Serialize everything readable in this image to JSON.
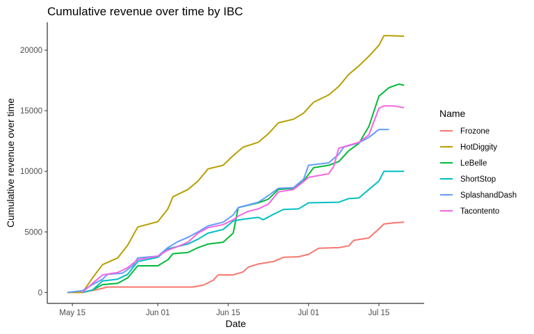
{
  "chart_data": {
    "type": "line",
    "title": "Cumulative revenue over time by IBC",
    "xlabel": "Date",
    "ylabel": "Cumulative revenue over time",
    "legend_title": "Name",
    "legend_position": "right",
    "grid": false,
    "xlim": [
      "2021-05-10",
      "2021-07-24"
    ],
    "ylim": [
      -900,
      22300
    ],
    "x_ticks": [
      {
        "date": "2021-05-15",
        "label": "May 15"
      },
      {
        "date": "2021-06-01",
        "label": "Jun 01"
      },
      {
        "date": "2021-06-15",
        "label": "Jun 15"
      },
      {
        "date": "2021-07-01",
        "label": "Jul 01"
      },
      {
        "date": "2021-07-15",
        "label": "Jul 15"
      }
    ],
    "y_ticks": [
      {
        "value": 0,
        "label": "0"
      },
      {
        "value": 5000,
        "label": "5000"
      },
      {
        "value": 10000,
        "label": "10000"
      },
      {
        "value": 15000,
        "label": "15000"
      },
      {
        "value": 20000,
        "label": "20000"
      }
    ],
    "series": [
      {
        "name": "Frozone",
        "color": "#F8766D",
        "points": [
          [
            "2021-05-14",
            0
          ],
          [
            "2021-05-17",
            0
          ],
          [
            "2021-05-20",
            250
          ],
          [
            "2021-05-22",
            450
          ],
          [
            "2021-05-30",
            450
          ],
          [
            "2021-06-05",
            450
          ],
          [
            "2021-06-08",
            450
          ],
          [
            "2021-06-10",
            600
          ],
          [
            "2021-06-12",
            1000
          ],
          [
            "2021-06-13",
            1450
          ],
          [
            "2021-06-16",
            1450
          ],
          [
            "2021-06-18",
            1700
          ],
          [
            "2021-06-19",
            2100
          ],
          [
            "2021-06-21",
            2350
          ],
          [
            "2021-06-24",
            2550
          ],
          [
            "2021-06-26",
            2900
          ],
          [
            "2021-06-29",
            2950
          ],
          [
            "2021-07-01",
            3150
          ],
          [
            "2021-07-03",
            3650
          ],
          [
            "2021-07-07",
            3700
          ],
          [
            "2021-07-09",
            3850
          ],
          [
            "2021-07-10",
            4300
          ],
          [
            "2021-07-13",
            4500
          ],
          [
            "2021-07-15",
            5250
          ],
          [
            "2021-07-16",
            5650
          ],
          [
            "2021-07-18",
            5750
          ],
          [
            "2021-07-20",
            5800
          ]
        ]
      },
      {
        "name": "HotDiggity",
        "color": "#B79F00",
        "points": [
          [
            "2021-05-14",
            0
          ],
          [
            "2021-05-17",
            0
          ],
          [
            "2021-05-19",
            1200
          ],
          [
            "2021-05-21",
            2300
          ],
          [
            "2021-05-24",
            2850
          ],
          [
            "2021-05-26",
            3900
          ],
          [
            "2021-05-28",
            5400
          ],
          [
            "2021-06-01",
            5850
          ],
          [
            "2021-06-03",
            6900
          ],
          [
            "2021-06-04",
            7900
          ],
          [
            "2021-06-07",
            8500
          ],
          [
            "2021-06-09",
            9200
          ],
          [
            "2021-06-11",
            10200
          ],
          [
            "2021-06-14",
            10500
          ],
          [
            "2021-06-16",
            11300
          ],
          [
            "2021-06-18",
            12000
          ],
          [
            "2021-06-21",
            12400
          ],
          [
            "2021-06-23",
            13100
          ],
          [
            "2021-06-25",
            14000
          ],
          [
            "2021-06-28",
            14300
          ],
          [
            "2021-06-30",
            14800
          ],
          [
            "2021-07-02",
            15700
          ],
          [
            "2021-07-05",
            16300
          ],
          [
            "2021-07-07",
            17000
          ],
          [
            "2021-07-09",
            18000
          ],
          [
            "2021-07-11",
            18700
          ],
          [
            "2021-07-13",
            19500
          ],
          [
            "2021-07-15",
            20400
          ],
          [
            "2021-07-16",
            21200
          ],
          [
            "2021-07-17",
            21200
          ],
          [
            "2021-07-20",
            21150
          ]
        ]
      },
      {
        "name": "LeBelle",
        "color": "#00BA38",
        "points": [
          [
            "2021-05-17",
            0
          ],
          [
            "2021-05-19",
            200
          ],
          [
            "2021-05-21",
            650
          ],
          [
            "2021-05-24",
            750
          ],
          [
            "2021-05-26",
            1200
          ],
          [
            "2021-05-28",
            2200
          ],
          [
            "2021-06-01",
            2200
          ],
          [
            "2021-06-03",
            2700
          ],
          [
            "2021-06-04",
            3200
          ],
          [
            "2021-06-07",
            3300
          ],
          [
            "2021-06-09",
            3700
          ],
          [
            "2021-06-11",
            4000
          ],
          [
            "2021-06-14",
            4150
          ],
          [
            "2021-06-16",
            4900
          ],
          [
            "2021-06-17",
            7000
          ],
          [
            "2021-06-21",
            7400
          ],
          [
            "2021-06-23",
            7700
          ],
          [
            "2021-06-25",
            8500
          ],
          [
            "2021-06-28",
            8600
          ],
          [
            "2021-06-30",
            9200
          ],
          [
            "2021-07-02",
            10300
          ],
          [
            "2021-07-05",
            10500
          ],
          [
            "2021-07-07",
            10800
          ],
          [
            "2021-07-09",
            11700
          ],
          [
            "2021-07-11",
            12300
          ],
          [
            "2021-07-13",
            13700
          ],
          [
            "2021-07-15",
            16200
          ],
          [
            "2021-07-17",
            16900
          ],
          [
            "2021-07-19",
            17200
          ],
          [
            "2021-07-20",
            17100
          ]
        ]
      },
      {
        "name": "ShortStop",
        "color": "#00BFC4",
        "points": [
          [
            "2021-05-17",
            0
          ],
          [
            "2021-05-19",
            200
          ],
          [
            "2021-05-21",
            950
          ],
          [
            "2021-05-24",
            1100
          ],
          [
            "2021-05-26",
            1500
          ],
          [
            "2021-05-28",
            2550
          ],
          [
            "2021-06-01",
            2900
          ],
          [
            "2021-06-03",
            3600
          ],
          [
            "2021-06-07",
            4000
          ],
          [
            "2021-06-09",
            4400
          ],
          [
            "2021-06-11",
            4900
          ],
          [
            "2021-06-14",
            5200
          ],
          [
            "2021-06-16",
            5900
          ],
          [
            "2021-06-18",
            6050
          ],
          [
            "2021-06-21",
            6200
          ],
          [
            "2021-06-22",
            6000
          ],
          [
            "2021-06-24",
            6450
          ],
          [
            "2021-06-26",
            6850
          ],
          [
            "2021-06-29",
            6900
          ],
          [
            "2021-07-01",
            7400
          ],
          [
            "2021-07-07",
            7450
          ],
          [
            "2021-07-09",
            7750
          ],
          [
            "2021-07-11",
            7800
          ],
          [
            "2021-07-13",
            8500
          ],
          [
            "2021-07-15",
            9200
          ],
          [
            "2021-07-16",
            10000
          ],
          [
            "2021-07-20",
            10000
          ]
        ]
      },
      {
        "name": "SplashandDash",
        "color": "#619CFF",
        "points": [
          [
            "2021-05-14",
            0
          ],
          [
            "2021-05-17",
            150
          ],
          [
            "2021-05-19",
            650
          ],
          [
            "2021-05-21",
            1100
          ],
          [
            "2021-05-22",
            1500
          ],
          [
            "2021-05-25",
            1600
          ],
          [
            "2021-05-27",
            2200
          ],
          [
            "2021-05-28",
            2850
          ],
          [
            "2021-06-01",
            3000
          ],
          [
            "2021-06-03",
            3700
          ],
          [
            "2021-06-05",
            4200
          ],
          [
            "2021-06-07",
            4550
          ],
          [
            "2021-06-09",
            5000
          ],
          [
            "2021-06-11",
            5500
          ],
          [
            "2021-06-14",
            5800
          ],
          [
            "2021-06-16",
            6400
          ],
          [
            "2021-06-17",
            7000
          ],
          [
            "2021-06-21",
            7450
          ],
          [
            "2021-06-23",
            8000
          ],
          [
            "2021-06-25",
            8600
          ],
          [
            "2021-06-28",
            8650
          ],
          [
            "2021-06-30",
            9350
          ],
          [
            "2021-07-01",
            10500
          ],
          [
            "2021-07-05",
            10700
          ],
          [
            "2021-07-07",
            11400
          ],
          [
            "2021-07-08",
            12000
          ],
          [
            "2021-07-11",
            12350
          ],
          [
            "2021-07-13",
            12800
          ],
          [
            "2021-07-15",
            13450
          ],
          [
            "2021-07-17",
            13450
          ]
        ]
      },
      {
        "name": "Tacontento",
        "color": "#F564E3",
        "points": [
          [
            "2021-05-17",
            0
          ],
          [
            "2021-05-19",
            750
          ],
          [
            "2021-05-21",
            1450
          ],
          [
            "2021-05-24",
            1650
          ],
          [
            "2021-05-26",
            2050
          ],
          [
            "2021-05-28",
            2700
          ],
          [
            "2021-06-01",
            3000
          ],
          [
            "2021-06-03",
            3500
          ],
          [
            "2021-06-05",
            3800
          ],
          [
            "2021-06-07",
            4150
          ],
          [
            "2021-06-09",
            4900
          ],
          [
            "2021-06-11",
            5350
          ],
          [
            "2021-06-14",
            5600
          ],
          [
            "2021-06-16",
            6000
          ],
          [
            "2021-06-17",
            6300
          ],
          [
            "2021-06-19",
            6700
          ],
          [
            "2021-06-21",
            6900
          ],
          [
            "2021-06-23",
            7300
          ],
          [
            "2021-06-25",
            8300
          ],
          [
            "2021-06-28",
            8500
          ],
          [
            "2021-06-30",
            9150
          ],
          [
            "2021-07-01",
            9500
          ],
          [
            "2021-07-05",
            9800
          ],
          [
            "2021-07-06",
            10400
          ],
          [
            "2021-07-07",
            11900
          ],
          [
            "2021-07-11",
            12400
          ],
          [
            "2021-07-13",
            13000
          ],
          [
            "2021-07-15",
            15200
          ],
          [
            "2021-07-16",
            15400
          ],
          [
            "2021-07-18",
            15400
          ],
          [
            "2021-07-20",
            15250
          ]
        ]
      }
    ]
  }
}
